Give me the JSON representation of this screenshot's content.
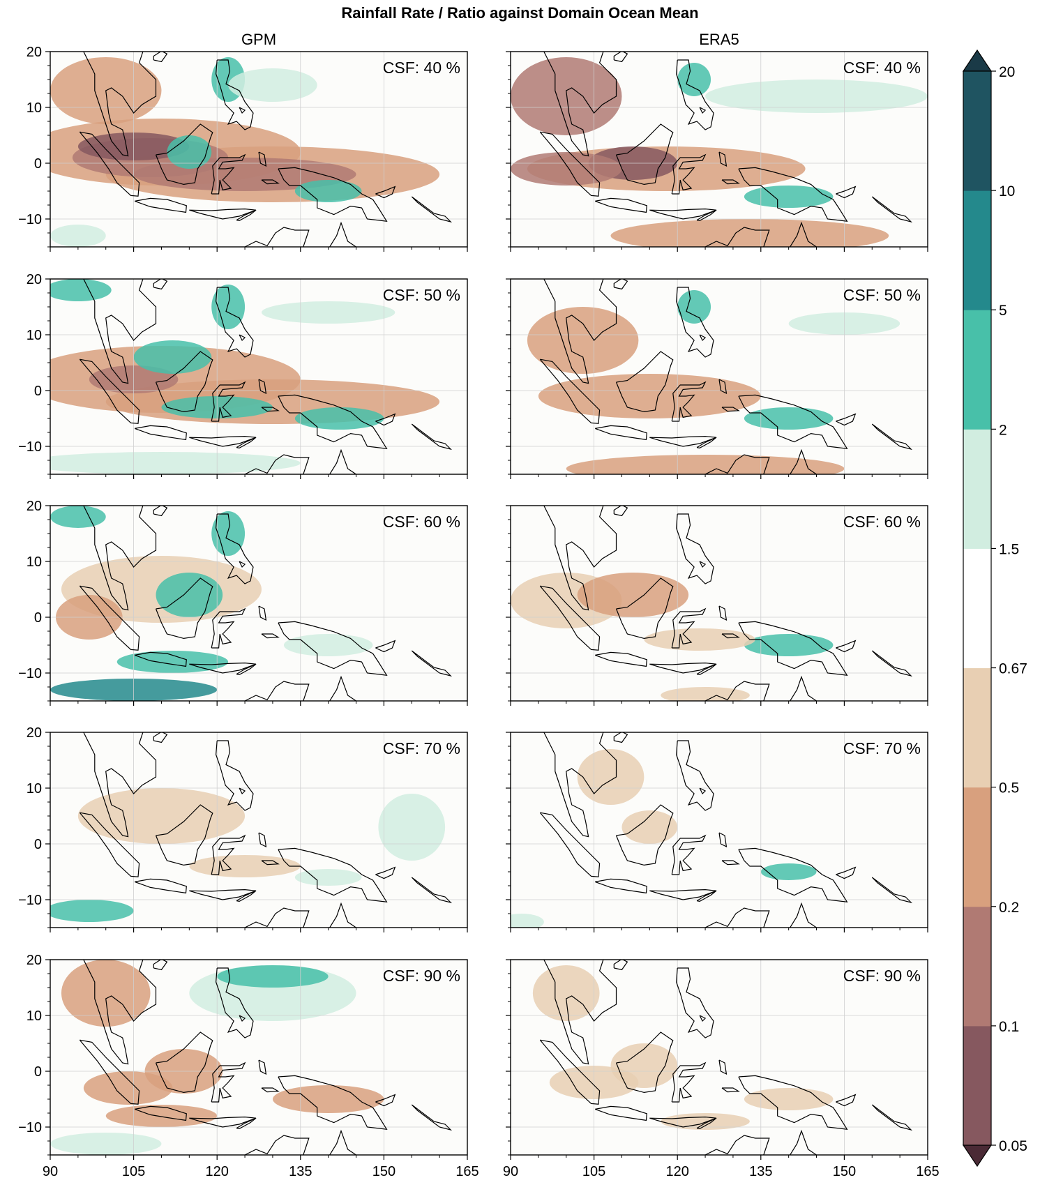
{
  "figure_title": "Rainfall Rate / Ratio against Domain Ocean Mean",
  "columns": [
    "GPM",
    "ERA5"
  ],
  "chart_data": {
    "type": "heatmap",
    "title": "Rainfall Rate / Ratio against Domain Ocean Mean",
    "x_ticks": [
      "90",
      "105",
      "120",
      "135",
      "150",
      "165"
    ],
    "y_ticks": [
      "20",
      "10",
      "0",
      "−10"
    ],
    "xlim": [
      90,
      165
    ],
    "ylim": [
      -15,
      20
    ],
    "grid": true,
    "panels": [
      {
        "dataset": "GPM",
        "label": "CSF: 40 %"
      },
      {
        "dataset": "ERA5",
        "label": "CSF: 40 %"
      },
      {
        "dataset": "GPM",
        "label": "CSF: 50 %"
      },
      {
        "dataset": "ERA5",
        "label": "CSF: 50 %"
      },
      {
        "dataset": "GPM",
        "label": "CSF: 60 %"
      },
      {
        "dataset": "ERA5",
        "label": "CSF: 60 %"
      },
      {
        "dataset": "GPM",
        "label": "CSF: 70 %"
      },
      {
        "dataset": "ERA5",
        "label": "CSF: 70 %"
      },
      {
        "dataset": "GPM",
        "label": "CSF: 90 %"
      },
      {
        "dataset": "ERA5",
        "label": "CSF: 90 %"
      }
    ],
    "colorbar": {
      "levels": [
        "0.05",
        "0.1",
        "0.2",
        "0.5",
        "0.67",
        "1.5",
        "2",
        "5",
        "10",
        "20"
      ],
      "colors": [
        "#86585f",
        "#b07a73",
        "#d8a07e",
        "#e8cfb3",
        "#ffffff",
        "#d1ede0",
        "#48c0a9",
        "#24898c",
        "#1f5461"
      ],
      "under_color": "#4a2a35",
      "over_color": "#1a3a47",
      "extend": "both",
      "orientation": "vertical"
    },
    "colors": {
      "very_low": "#86585f",
      "low": "#b07a73",
      "moderate_low": "#d8a07e",
      "slightly_low": "#e8cfb3",
      "neutral": "#ffffff",
      "slightly_high": "#d1ede0",
      "high": "#48c0a9",
      "very_high": "#24898c",
      "extreme": "#1f5461"
    }
  }
}
